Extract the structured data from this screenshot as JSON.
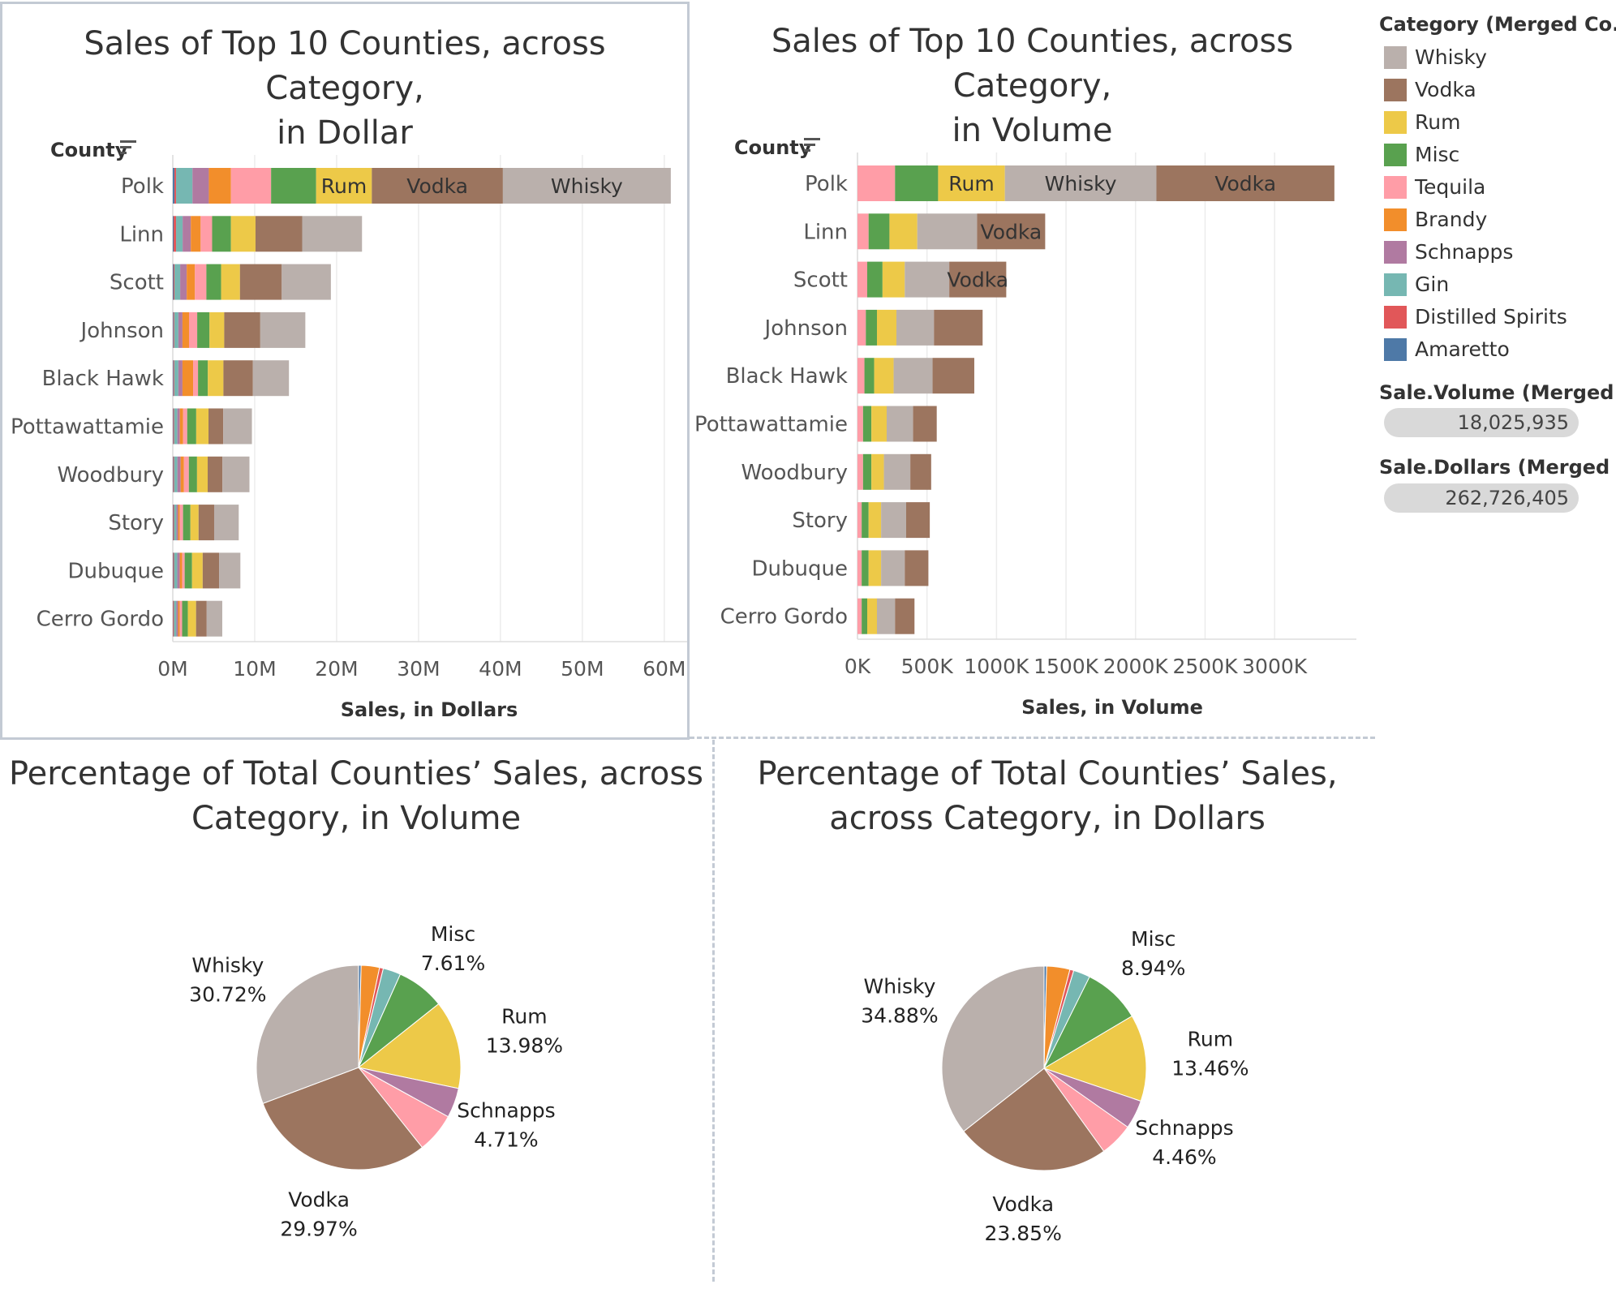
{
  "colors": {
    "Whisky": "#bab0ac",
    "Vodka": "#9c755f",
    "Rum": "#edc948",
    "Misc": "#59a14f",
    "Tequila": "#ff9da7",
    "Brandy": "#f28e2b",
    "Schnapps": "#b07aa1",
    "Gin": "#76b7b2",
    "Distilled Spirits": "#e15759",
    "Amaretto": "#4e79a7"
  },
  "legend": {
    "title": "Category (Merged Co..",
    "items": [
      "Whisky",
      "Vodka",
      "Rum",
      "Misc",
      "Tequila",
      "Brandy",
      "Schnapps",
      "Gin",
      "Distilled Spirits",
      "Amaretto"
    ],
    "volume_title": "Sale.Volume (Merged ..",
    "volume_value": "18,025,935",
    "dollars_title": "Sale.Dollars (Merged ..",
    "dollars_value": "262,726,405"
  },
  "chart_data": [
    {
      "type": "bar",
      "orientation": "horizontal-stacked",
      "title": "Sales of Top 10 Counties, across Category,\nin Dollar",
      "ylabel": "County",
      "xlabel": "Sales, in Dollars",
      "xlim": [
        0,
        62000000
      ],
      "xticks": [
        0,
        10000000,
        20000000,
        30000000,
        40000000,
        50000000,
        60000000
      ],
      "xtick_labels": [
        "0M",
        "10M",
        "20M",
        "30M",
        "40M",
        "50M",
        "60M"
      ],
      "categories": [
        "Polk",
        "Linn",
        "Scott",
        "Johnson",
        "Black Hawk",
        "Pottawattamie",
        "Woodbury",
        "Story",
        "Dubuque",
        "Cerro Gordo"
      ],
      "series": [
        {
          "name": "Amaretto",
          "values": [
            200000,
            100000,
            100000,
            80000,
            80000,
            60000,
            60000,
            50000,
            50000,
            40000
          ]
        },
        {
          "name": "Distilled Spirits",
          "values": [
            200000,
            300000,
            100000,
            100000,
            100000,
            100000,
            100000,
            100000,
            100000,
            100000
          ]
        },
        {
          "name": "Gin",
          "values": [
            2000000,
            800000,
            700000,
            500000,
            500000,
            400000,
            400000,
            300000,
            400000,
            300000
          ]
        },
        {
          "name": "Schnapps",
          "values": [
            2000000,
            1000000,
            800000,
            500000,
            500000,
            300000,
            400000,
            200000,
            300000,
            200000
          ]
        },
        {
          "name": "Brandy",
          "values": [
            2700000,
            1200000,
            1000000,
            800000,
            1300000,
            400000,
            400000,
            200000,
            300000,
            200000
          ]
        },
        {
          "name": "Tequila",
          "values": [
            4900000,
            1400000,
            1400000,
            1000000,
            600000,
            500000,
            600000,
            400000,
            300000,
            300000
          ]
        },
        {
          "name": "Misc",
          "values": [
            5500000,
            2300000,
            1800000,
            1500000,
            1200000,
            1100000,
            1000000,
            900000,
            900000,
            700000
          ]
        },
        {
          "name": "Rum",
          "values": [
            6800000,
            3000000,
            2300000,
            1800000,
            1900000,
            1500000,
            1300000,
            1000000,
            1300000,
            1000000
          ]
        },
        {
          "name": "Vodka",
          "values": [
            16000000,
            5700000,
            5100000,
            4400000,
            3600000,
            1800000,
            1800000,
            1900000,
            2000000,
            1300000
          ]
        },
        {
          "name": "Whisky",
          "values": [
            20500000,
            7300000,
            6000000,
            5500000,
            4400000,
            3500000,
            3300000,
            3000000,
            2600000,
            1900000
          ]
        }
      ],
      "labels": {
        "Polk": [
          "Rum",
          "Vodka",
          "Whisky"
        ]
      }
    },
    {
      "type": "bar",
      "orientation": "horizontal-stacked",
      "title": "Sales of Top 10 Counties, across Category,\nin Volume",
      "ylabel": "County",
      "xlabel": "Sales, in Volume",
      "xlim": [
        0,
        3530000
      ],
      "xticks": [
        0,
        500000,
        1000000,
        1500000,
        2000000,
        2500000,
        3000000
      ],
      "xtick_labels": [
        "0K",
        "500K",
        "1000K",
        "1500K",
        "2000K",
        "2500K",
        "3000K"
      ],
      "categories": [
        "Polk",
        "Linn",
        "Scott",
        "Johnson",
        "Black Hawk",
        "Pottawattamie",
        "Woodbury",
        "Story",
        "Dubuque",
        "Cerro Gordo"
      ],
      "series": [
        {
          "name": "Tequila",
          "values": [
            270000,
            80000,
            70000,
            60000,
            50000,
            40000,
            40000,
            30000,
            30000,
            30000
          ]
        },
        {
          "name": "Misc",
          "values": [
            310000,
            150000,
            110000,
            80000,
            70000,
            60000,
            60000,
            50000,
            50000,
            40000
          ]
        },
        {
          "name": "Rum",
          "values": [
            480000,
            200000,
            160000,
            140000,
            140000,
            110000,
            90000,
            90000,
            90000,
            70000
          ]
        },
        {
          "name": "Whisky",
          "values": [
            1090000,
            430000,
            320000,
            270000,
            280000,
            190000,
            190000,
            180000,
            170000,
            130000
          ]
        },
        {
          "name": "Vodka",
          "values": [
            1280000,
            490000,
            410000,
            350000,
            300000,
            170000,
            150000,
            170000,
            170000,
            140000
          ]
        }
      ],
      "labels": {
        "Polk": [
          "Rum",
          "Whisky",
          "Vodka"
        ],
        "Linn": [
          "Vodka"
        ],
        "Scott": [
          "Vodka"
        ]
      }
    },
    {
      "type": "pie",
      "title": "Percentage of Total Counties’ Sales, across\nCategory, in Volume",
      "slices": [
        {
          "name": "Amaretto",
          "value": 0.4
        },
        {
          "name": "Brandy",
          "value": 2.9
        },
        {
          "name": "Distilled Spirits",
          "value": 0.6
        },
        {
          "name": "Gin",
          "value": 2.8
        },
        {
          "name": "Misc",
          "value": 7.61,
          "label": "7.61%"
        },
        {
          "name": "Rum",
          "value": 13.98,
          "label": "13.98%"
        },
        {
          "name": "Schnapps",
          "value": 4.71,
          "label": "4.71%"
        },
        {
          "name": "Tequila",
          "value": 6.29
        },
        {
          "name": "Vodka",
          "value": 29.97,
          "label": "29.97%"
        },
        {
          "name": "Whisky",
          "value": 30.72,
          "label": "30.72%"
        }
      ]
    },
    {
      "type": "pie",
      "title": "Percentage of Total Counties’ Sales,\nacross Category, in Dollars",
      "slices": [
        {
          "name": "Amaretto",
          "value": 0.4
        },
        {
          "name": "Brandy",
          "value": 3.6
        },
        {
          "name": "Distilled Spirits",
          "value": 0.6
        },
        {
          "name": "Gin",
          "value": 2.6
        },
        {
          "name": "Misc",
          "value": 8.94,
          "label": "8.94%"
        },
        {
          "name": "Rum",
          "value": 13.46,
          "label": "13.46%"
        },
        {
          "name": "Schnapps",
          "value": 4.46,
          "label": "4.46%"
        },
        {
          "name": "Tequila",
          "value": 5.21
        },
        {
          "name": "Vodka",
          "value": 23.85,
          "label": "23.85%"
        },
        {
          "name": "Whisky",
          "value": 34.88,
          "label": "34.88%"
        }
      ]
    }
  ]
}
